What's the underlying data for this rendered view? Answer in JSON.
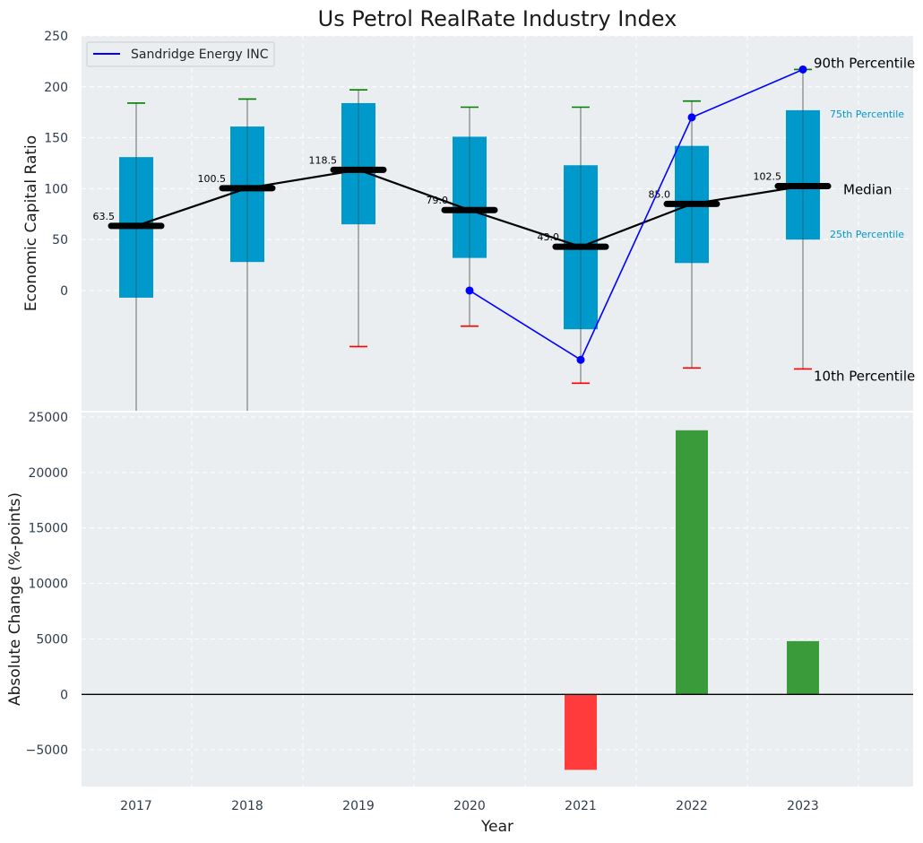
{
  "chart_data": [
    {
      "type": "box",
      "title": "Us Petrol RealRate Industry Index",
      "ylabel": "Economic Capital Ratio",
      "ylim": [
        -118,
        250
      ],
      "yticks": [
        0,
        50,
        100,
        150,
        200,
        250
      ],
      "categories": [
        "2017",
        "2018",
        "2019",
        "2020",
        "2021",
        "2022",
        "2023"
      ],
      "boxes": [
        {
          "year": "2017",
          "p10": null,
          "p25": -7,
          "median": 63.5,
          "p75": 131,
          "p90": 184
        },
        {
          "year": "2018",
          "p10": null,
          "p25": 28,
          "median": 100.5,
          "p75": 161,
          "p90": 188
        },
        {
          "year": "2019",
          "p10": -55,
          "p25": 65,
          "median": 118.5,
          "p75": 184,
          "p90": 197
        },
        {
          "year": "2020",
          "p10": -35,
          "p25": 32,
          "median": 79.0,
          "p75": 151,
          "p90": 180
        },
        {
          "year": "2021",
          "p10": -91,
          "p25": -38,
          "median": 43.0,
          "p75": 123,
          "p90": 180
        },
        {
          "year": "2022",
          "p10": -76,
          "p25": 27,
          "median": 85.0,
          "p75": 142,
          "p90": 186
        },
        {
          "year": "2023",
          "p10": -77,
          "p25": 50,
          "median": 102.5,
          "p75": 177,
          "p90": 217
        }
      ],
      "median_labels": [
        "63.5",
        "100.5",
        "118.5",
        "79.0",
        "43.0",
        "85.0",
        "102.5"
      ],
      "series": [
        {
          "name": "Sandridge Energy INC",
          "x": [
            "2020",
            "2021",
            "2022",
            "2023"
          ],
          "values": [
            0,
            -68,
            170,
            217
          ]
        }
      ],
      "legend": {
        "position": "top-left",
        "entries": [
          "Sandridge Energy INC"
        ]
      },
      "annotations": {
        "p90": "90th Percentile",
        "p75": "75th Percentile",
        "median": "Median",
        "p25": "25th Percentile",
        "p10": "10th Percentile"
      },
      "colors": {
        "box": "#0099cc",
        "median_bar": "#000000",
        "median_line": "#000000",
        "series": "#0000ff",
        "cap_top": "#008000",
        "cap_bottom": "#ff0000",
        "whisker": "#808080",
        "p_label_small": "#0099cc",
        "background": "#eaeef0"
      },
      "grid": true
    },
    {
      "type": "bar",
      "ylabel": "Absolute Change (%-points)",
      "xlabel": "Year",
      "ylim": [
        -8300,
        25400
      ],
      "yticks": [
        -5000,
        0,
        5000,
        10000,
        15000,
        20000,
        25000
      ],
      "ytick_labels": [
        "−5000",
        "0",
        "5000",
        "10000",
        "15000",
        "20000",
        "25000"
      ],
      "categories": [
        "2017",
        "2018",
        "2019",
        "2020",
        "2021",
        "2022",
        "2023"
      ],
      "values": [
        0,
        0,
        0,
        0,
        -6800,
        23800,
        4800
      ],
      "colors": {
        "positive": "#3a9b3a",
        "negative": "#ff3b3b",
        "zero_line": "#000000",
        "background": "#eaeef0"
      },
      "grid": true
    }
  ]
}
